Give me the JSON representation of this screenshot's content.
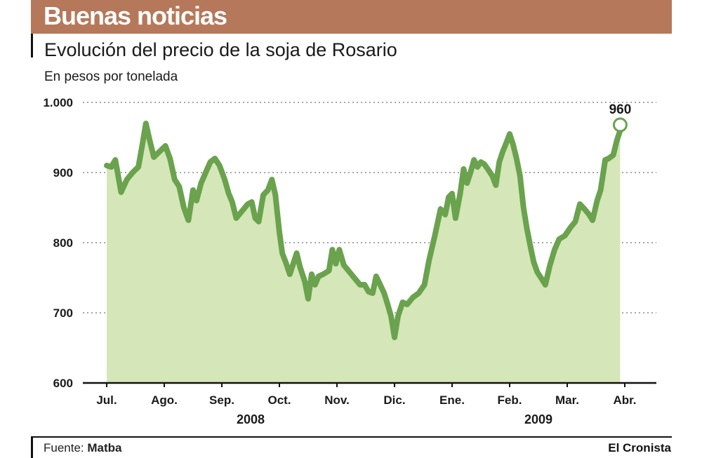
{
  "banner": {
    "title": "Buenas noticias"
  },
  "header": {
    "subtitle": "Evolución del precio de la soja de Rosario",
    "units": "En pesos por tonelada"
  },
  "footer": {
    "source_label": "Fuente:",
    "source_value": "Matba",
    "brand": "El Cronista"
  },
  "colors": {
    "banner": "#b5785a",
    "line": "#6aa24e",
    "fill": "#d5e6b8",
    "grid": "#888888"
  },
  "chart_data": {
    "type": "area",
    "title": "Evolución del precio de la soja de Rosario",
    "ylabel": "En pesos por tonelada",
    "ylim": [
      600,
      1000
    ],
    "yticks": [
      600,
      700,
      800,
      900,
      1000
    ],
    "ytick_labels": [
      "600",
      "700",
      "800",
      "900",
      "1.000"
    ],
    "grid": true,
    "months": [
      "Jul.",
      "Ago.",
      "Sep.",
      "Oct.",
      "Nov.",
      "Dic.",
      "Ene.",
      "Feb.",
      "Mar.",
      "Abr."
    ],
    "years": [
      {
        "label": "2008",
        "months": [
          "Jul.",
          "Ago.",
          "Sep.",
          "Oct.",
          "Nov.",
          "Dic."
        ]
      },
      {
        "label": "2009",
        "months": [
          "Ene.",
          "Feb.",
          "Mar.",
          "Abr."
        ]
      }
    ],
    "x_unit": "months since Jul. 2008",
    "series": [
      {
        "points": [
          [
            0.0,
            910
          ],
          [
            0.08,
            908
          ],
          [
            0.15,
            918
          ],
          [
            0.25,
            872
          ],
          [
            0.35,
            890
          ],
          [
            0.45,
            900
          ],
          [
            0.55,
            908
          ],
          [
            0.62,
            940
          ],
          [
            0.68,
            970
          ],
          [
            0.75,
            945
          ],
          [
            0.82,
            922
          ],
          [
            0.92,
            930
          ],
          [
            1.02,
            938
          ],
          [
            1.1,
            920
          ],
          [
            1.18,
            890
          ],
          [
            1.26,
            880
          ],
          [
            1.34,
            850
          ],
          [
            1.42,
            832
          ],
          [
            1.5,
            875
          ],
          [
            1.56,
            860
          ],
          [
            1.64,
            885
          ],
          [
            1.72,
            900
          ],
          [
            1.8,
            915
          ],
          [
            1.88,
            920
          ],
          [
            1.96,
            910
          ],
          [
            2.05,
            890
          ],
          [
            2.12,
            870
          ],
          [
            2.18,
            858
          ],
          [
            2.25,
            835
          ],
          [
            2.35,
            845
          ],
          [
            2.45,
            855
          ],
          [
            2.52,
            858
          ],
          [
            2.58,
            835
          ],
          [
            2.64,
            830
          ],
          [
            2.72,
            868
          ],
          [
            2.8,
            875
          ],
          [
            2.87,
            890
          ],
          [
            2.93,
            868
          ],
          [
            3.0,
            815
          ],
          [
            3.05,
            785
          ],
          [
            3.12,
            770
          ],
          [
            3.18,
            755
          ],
          [
            3.24,
            770
          ],
          [
            3.3,
            785
          ],
          [
            3.36,
            765
          ],
          [
            3.44,
            745
          ],
          [
            3.5,
            720
          ],
          [
            3.56,
            755
          ],
          [
            3.62,
            740
          ],
          [
            3.68,
            752
          ],
          [
            3.76,
            755
          ],
          [
            3.86,
            760
          ],
          [
            3.92,
            790
          ],
          [
            3.98,
            770
          ],
          [
            4.04,
            790
          ],
          [
            4.12,
            768
          ],
          [
            4.2,
            760
          ],
          [
            4.3,
            750
          ],
          [
            4.4,
            740
          ],
          [
            4.48,
            740
          ],
          [
            4.55,
            730
          ],
          [
            4.62,
            728
          ],
          [
            4.68,
            752
          ],
          [
            4.74,
            742
          ],
          [
            4.82,
            728
          ],
          [
            4.88,
            712
          ],
          [
            4.94,
            695
          ],
          [
            5.0,
            665
          ],
          [
            5.06,
            695
          ],
          [
            5.14,
            715
          ],
          [
            5.22,
            712
          ],
          [
            5.32,
            722
          ],
          [
            5.42,
            728
          ],
          [
            5.52,
            740
          ],
          [
            5.6,
            775
          ],
          [
            5.7,
            810
          ],
          [
            5.8,
            848
          ],
          [
            5.88,
            840
          ],
          [
            5.94,
            865
          ],
          [
            6.0,
            870
          ],
          [
            6.06,
            835
          ],
          [
            6.14,
            870
          ],
          [
            6.2,
            905
          ],
          [
            6.26,
            885
          ],
          [
            6.32,
            900
          ],
          [
            6.38,
            918
          ],
          [
            6.44,
            908
          ],
          [
            6.5,
            915
          ],
          [
            6.56,
            912
          ],
          [
            6.62,
            905
          ],
          [
            6.7,
            895
          ],
          [
            6.76,
            882
          ],
          [
            6.82,
            915
          ],
          [
            6.88,
            930
          ],
          [
            6.94,
            942
          ],
          [
            7.0,
            955
          ],
          [
            7.06,
            940
          ],
          [
            7.12,
            920
          ],
          [
            7.18,
            895
          ],
          [
            7.24,
            850
          ],
          [
            7.3,
            820
          ],
          [
            7.36,
            795
          ],
          [
            7.42,
            772
          ],
          [
            7.48,
            758
          ],
          [
            7.56,
            748
          ],
          [
            7.62,
            740
          ],
          [
            7.7,
            768
          ],
          [
            7.78,
            790
          ],
          [
            7.86,
            805
          ],
          [
            7.96,
            810
          ],
          [
            8.06,
            822
          ],
          [
            8.14,
            830
          ],
          [
            8.22,
            855
          ],
          [
            8.3,
            848
          ],
          [
            8.38,
            840
          ],
          [
            8.44,
            832
          ],
          [
            8.52,
            860
          ],
          [
            8.58,
            875
          ],
          [
            8.66,
            918
          ],
          [
            8.72,
            920
          ],
          [
            8.8,
            925
          ],
          [
            8.86,
            945
          ],
          [
            8.92,
            960
          ]
        ]
      }
    ],
    "annotations": [
      {
        "label": "960",
        "x": 8.92,
        "y": 960
      }
    ]
  }
}
